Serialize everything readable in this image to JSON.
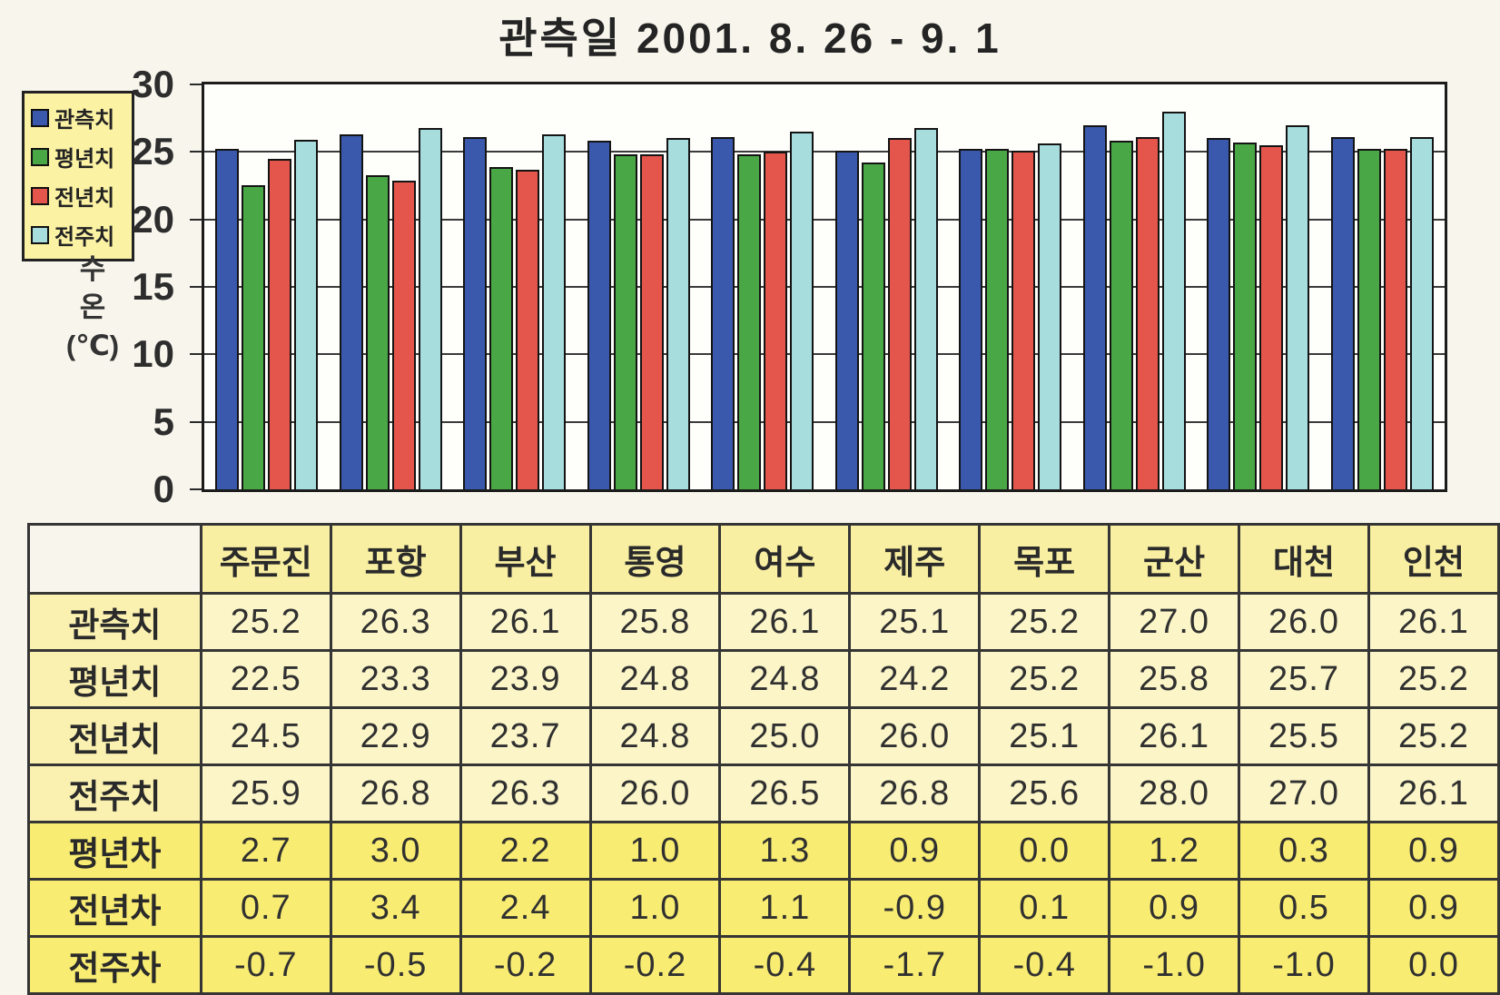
{
  "title": "관측일 2001. 8. 26  -  9. 1",
  "chart_data": {
    "type": "bar",
    "title": "관측일 2001. 8. 26 - 9. 1",
    "categories": [
      "주문진",
      "포항",
      "부산",
      "통영",
      "여수",
      "제주",
      "목포",
      "군산",
      "대천",
      "인천"
    ],
    "series": [
      {
        "name": "관측치",
        "color": "#3a59ac",
        "values": [
          25.2,
          26.3,
          26.1,
          25.8,
          26.1,
          25.1,
          25.2,
          27.0,
          26.0,
          26.1
        ]
      },
      {
        "name": "평년치",
        "color": "#4aa746",
        "values": [
          22.5,
          23.3,
          23.9,
          24.8,
          24.8,
          24.2,
          25.2,
          25.8,
          25.7,
          25.2
        ]
      },
      {
        "name": "전년치",
        "color": "#e4564b",
        "values": [
          24.5,
          22.9,
          23.7,
          24.8,
          25.0,
          26.0,
          25.1,
          26.1,
          25.5,
          25.2
        ]
      },
      {
        "name": "전주치",
        "color": "#a7dedd",
        "values": [
          25.9,
          26.8,
          26.3,
          26.0,
          26.5,
          26.8,
          25.6,
          28.0,
          27.0,
          26.1
        ]
      }
    ],
    "ylabel_lines": [
      "수",
      "온",
      "(℃)"
    ],
    "yticks": [
      0,
      5,
      10,
      15,
      20,
      25,
      30
    ],
    "ylim": [
      0,
      30
    ],
    "grid": true,
    "legend_position": "top-left"
  },
  "table": {
    "columns": [
      "주문진",
      "포항",
      "부산",
      "통영",
      "여수",
      "제주",
      "목포",
      "군산",
      "대천",
      "인천"
    ],
    "rows": [
      {
        "label": "관측치",
        "values": [
          "25.2",
          "26.3",
          "26.1",
          "25.8",
          "26.1",
          "25.1",
          "25.2",
          "27.0",
          "26.0",
          "26.1"
        ]
      },
      {
        "label": "평년치",
        "values": [
          "22.5",
          "23.3",
          "23.9",
          "24.8",
          "24.8",
          "24.2",
          "25.2",
          "25.8",
          "25.7",
          "25.2"
        ]
      },
      {
        "label": "전년치",
        "values": [
          "24.5",
          "22.9",
          "23.7",
          "24.8",
          "25.0",
          "26.0",
          "25.1",
          "26.1",
          "25.5",
          "25.2"
        ]
      },
      {
        "label": "전주치",
        "values": [
          "25.9",
          "26.8",
          "26.3",
          "26.0",
          "26.5",
          "26.8",
          "25.6",
          "28.0",
          "27.0",
          "26.1"
        ]
      },
      {
        "label": "평년차",
        "values": [
          "2.7",
          "3.0",
          "2.2",
          "1.0",
          "1.3",
          "0.9",
          "0.0",
          "1.2",
          "0.3",
          "0.9"
        ]
      },
      {
        "label": "전년차",
        "values": [
          "0.7",
          "3.4",
          "2.4",
          "1.0",
          "1.1",
          "-0.9",
          "0.1",
          "0.9",
          "0.5",
          "0.9"
        ]
      },
      {
        "label": "전주차",
        "values": [
          "-0.7",
          "-0.5",
          "-0.2",
          "-0.2",
          "-0.4",
          "-1.7",
          "-0.4",
          "-1.0",
          "-1.0",
          "0.0"
        ]
      }
    ]
  },
  "colors": {
    "background": "#f8f5ec",
    "plot_background": "#fefefb",
    "legend_background": "#fbf2a4",
    "table_header": "#f8efa2",
    "table_value_rows": "#fbf5c8",
    "table_diff_rows": "#f8ec72",
    "bar_outline": "#141414"
  }
}
